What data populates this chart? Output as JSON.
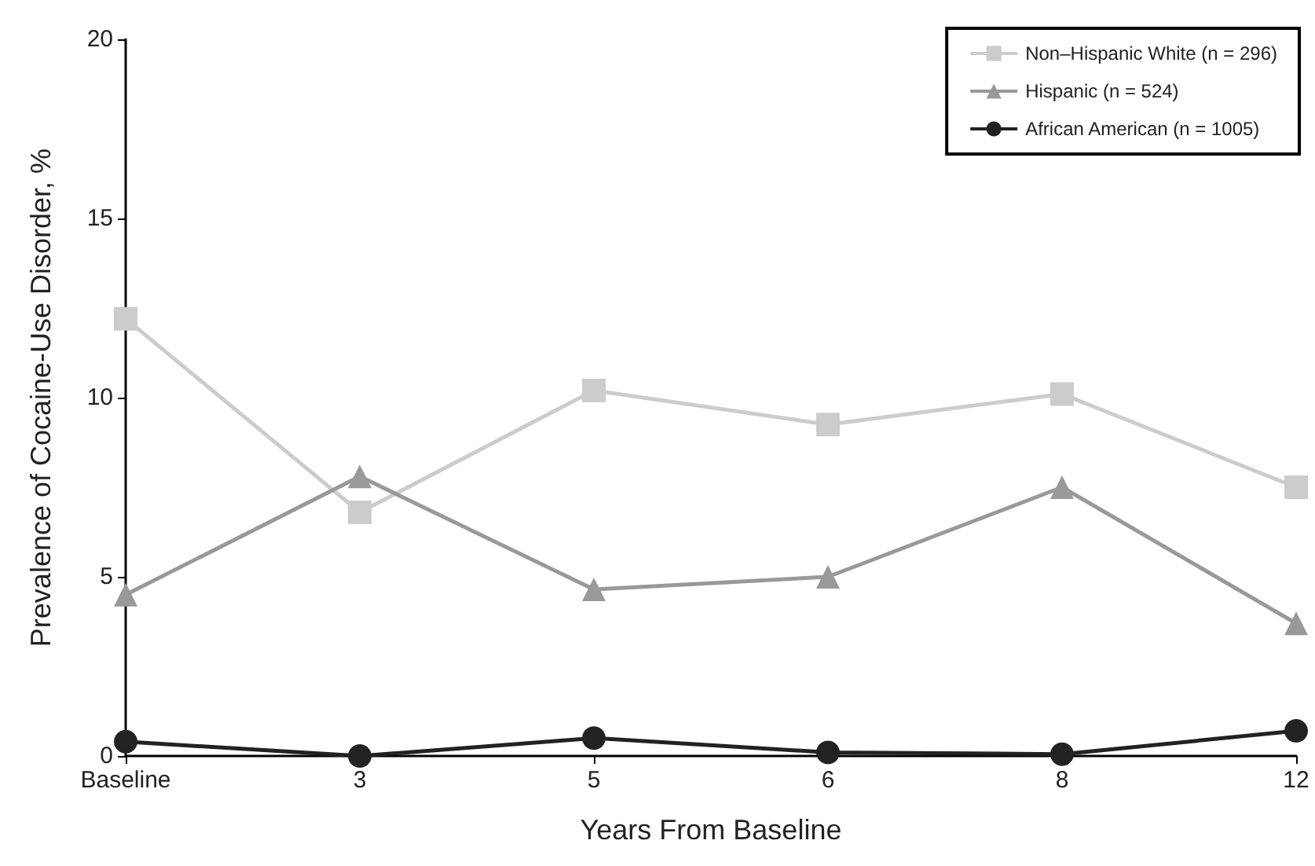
{
  "chart_data": {
    "type": "line",
    "xlabel": "Years From Baseline",
    "ylabel": "Prevalence of Cocaine-Use Disorder, %",
    "categories": [
      "Baseline",
      "3",
      "5",
      "6",
      "8",
      "12"
    ],
    "series": [
      {
        "name": "Non–Hispanic White (n = 296)",
        "color": "#cccccc",
        "marker": "square",
        "values": [
          12.2,
          6.8,
          10.2,
          9.25,
          10.1,
          7.5
        ]
      },
      {
        "name": "Hispanic (n = 524)",
        "color": "#999999",
        "marker": "triangle",
        "values": [
          4.5,
          7.8,
          4.65,
          5.0,
          7.5,
          3.7
        ]
      },
      {
        "name": "African American (n = 1005)",
        "color": "#222222",
        "marker": "circle",
        "values": [
          0.4,
          0,
          0.5,
          0.1,
          0.05,
          0.7
        ]
      }
    ],
    "ylim": [
      0,
      20
    ],
    "yticks": [
      0,
      5,
      10,
      15,
      20
    ],
    "grid": false,
    "legend": "top right",
    "line_style": "solid"
  }
}
